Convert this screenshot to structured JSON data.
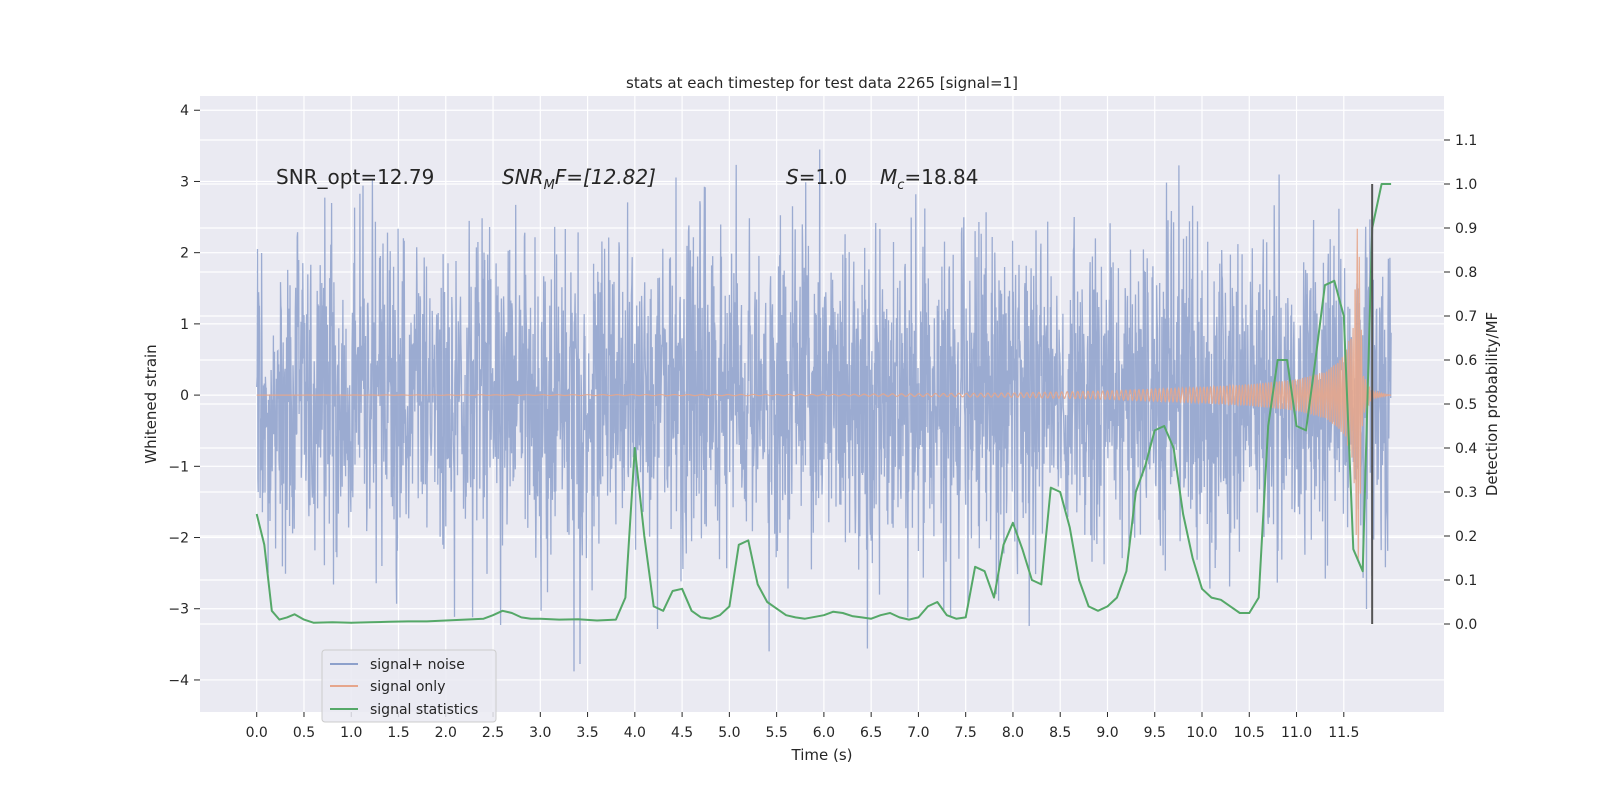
{
  "chart_data": {
    "type": "line",
    "title": "stats at each timestep for test data 2265 [signal=1]",
    "xlabel": "Time (s)",
    "ylabel": "Whitened strain",
    "y2label": "Detection probability/MF",
    "xlim": [
      -0.6,
      12.56
    ],
    "ylim": [
      -4.45,
      4.2
    ],
    "y2lim": [
      -0.2,
      1.2
    ],
    "x_ticks": [
      0.0,
      0.5,
      1.0,
      1.5,
      2.0,
      2.5,
      3.0,
      3.5,
      4.0,
      4.5,
      5.0,
      5.5,
      6.0,
      6.5,
      7.0,
      7.5,
      8.0,
      8.5,
      9.0,
      9.5,
      10.0,
      10.5,
      11.0,
      11.5
    ],
    "x_tick_labels": [
      "0.0",
      "0.5",
      "1.0",
      "1.5",
      "2.0",
      "2.5",
      "3.0",
      "3.5",
      "4.0",
      "4.5",
      "5.0",
      "5.5",
      "6.0",
      "6.5",
      "7.0",
      "7.5",
      "8.0",
      "8.5",
      "9.0",
      "9.5",
      "10.0",
      "10.5",
      "11.0",
      "11.5"
    ],
    "y_ticks": [
      -4,
      -3,
      -2,
      -1,
      0,
      1,
      2,
      3,
      4
    ],
    "y_tick_labels": [
      "−4",
      "−3",
      "−2",
      "−1",
      "0",
      "1",
      "2",
      "3",
      "4"
    ],
    "y2_ticks": [
      0.0,
      0.1,
      0.2,
      0.3,
      0.4,
      0.5,
      0.6,
      0.7,
      0.8,
      0.9,
      1.0,
      1.1
    ],
    "y2_tick_labels": [
      "0.0",
      "0.1",
      "0.2",
      "0.3",
      "0.4",
      "0.5",
      "0.6",
      "0.7",
      "0.8",
      "0.9",
      "1.0",
      "1.1"
    ],
    "grid": true,
    "legend": {
      "location": "lower-left",
      "entries": [
        "signal+ noise",
        "signal only",
        "signal statistics"
      ]
    },
    "annotations": {
      "snr_opt": "SNR_opt=12.79",
      "snr_mf_sym": "SNR",
      "snr_mf_sub": "M",
      "snr_mf_rest": "F=[12.82]",
      "s_sym": "S",
      "s_rest": "=1.0",
      "mc_sym": "M",
      "mc_sub": "c",
      "mc_rest": "=18.84"
    },
    "x_range": [
      0.0,
      12.0
    ],
    "signal_noise_envelope": {
      "typical_abs": 1.35,
      "max": 3.8,
      "min": -4.05
    },
    "signal_only_envelope": {
      "x": [
        0.0,
        6.0,
        8.0,
        9.0,
        10.0,
        10.5,
        11.0,
        11.3,
        11.5,
        11.6,
        11.65,
        11.7,
        11.8,
        12.0
      ],
      "amp": [
        0.0,
        0.01,
        0.03,
        0.06,
        0.11,
        0.15,
        0.22,
        0.33,
        0.55,
        0.95,
        2.6,
        0.3,
        0.05,
        0.0
      ]
    },
    "vertical_marker": {
      "x": 11.8,
      "y2_from": 0.0,
      "y2_to": 1.0
    },
    "signal_statistics": {
      "x": [
        0.0,
        0.08,
        0.16,
        0.24,
        0.32,
        0.4,
        0.5,
        0.6,
        0.8,
        1.0,
        1.2,
        1.4,
        1.6,
        1.8,
        2.0,
        2.2,
        2.4,
        2.5,
        2.6,
        2.7,
        2.8,
        2.9,
        3.0,
        3.2,
        3.4,
        3.6,
        3.8,
        3.9,
        4.0,
        4.1,
        4.2,
        4.3,
        4.4,
        4.5,
        4.6,
        4.7,
        4.8,
        4.9,
        5.0,
        5.1,
        5.2,
        5.3,
        5.4,
        5.5,
        5.6,
        5.7,
        5.8,
        6.0,
        6.1,
        6.2,
        6.3,
        6.4,
        6.5,
        6.6,
        6.7,
        6.8,
        6.9,
        7.0,
        7.1,
        7.2,
        7.3,
        7.4,
        7.5,
        7.6,
        7.7,
        7.8,
        7.9,
        8.0,
        8.1,
        8.2,
        8.3,
        8.4,
        8.5,
        8.6,
        8.7,
        8.8,
        8.9,
        9.0,
        9.1,
        9.2,
        9.3,
        9.4,
        9.5,
        9.6,
        9.7,
        9.8,
        9.9,
        10.0,
        10.1,
        10.2,
        10.3,
        10.4,
        10.5,
        10.6,
        10.7,
        10.8,
        10.9,
        11.0,
        11.1,
        11.2,
        11.3,
        11.4,
        11.5,
        11.6,
        11.7,
        11.8,
        11.9,
        12.0
      ],
      "y": [
        0.25,
        0.18,
        0.03,
        0.01,
        0.015,
        0.022,
        0.01,
        0.003,
        0.004,
        0.003,
        0.004,
        0.005,
        0.006,
        0.006,
        0.008,
        0.01,
        0.012,
        0.02,
        0.03,
        0.025,
        0.015,
        0.012,
        0.012,
        0.01,
        0.011,
        0.008,
        0.01,
        0.06,
        0.4,
        0.2,
        0.04,
        0.03,
        0.075,
        0.08,
        0.03,
        0.015,
        0.012,
        0.02,
        0.04,
        0.18,
        0.19,
        0.09,
        0.05,
        0.035,
        0.02,
        0.015,
        0.012,
        0.02,
        0.028,
        0.025,
        0.018,
        0.015,
        0.012,
        0.02,
        0.025,
        0.015,
        0.01,
        0.015,
        0.04,
        0.05,
        0.02,
        0.012,
        0.015,
        0.13,
        0.12,
        0.06,
        0.18,
        0.23,
        0.17,
        0.1,
        0.09,
        0.31,
        0.3,
        0.22,
        0.1,
        0.04,
        0.03,
        0.04,
        0.06,
        0.12,
        0.3,
        0.36,
        0.44,
        0.45,
        0.4,
        0.25,
        0.15,
        0.08,
        0.06,
        0.055,
        0.04,
        0.025,
        0.025,
        0.06,
        0.45,
        0.6,
        0.6,
        0.45,
        0.44,
        0.6,
        0.77,
        0.78,
        0.7,
        0.17,
        0.12,
        0.9,
        1.0,
        1.0
      ]
    }
  }
}
